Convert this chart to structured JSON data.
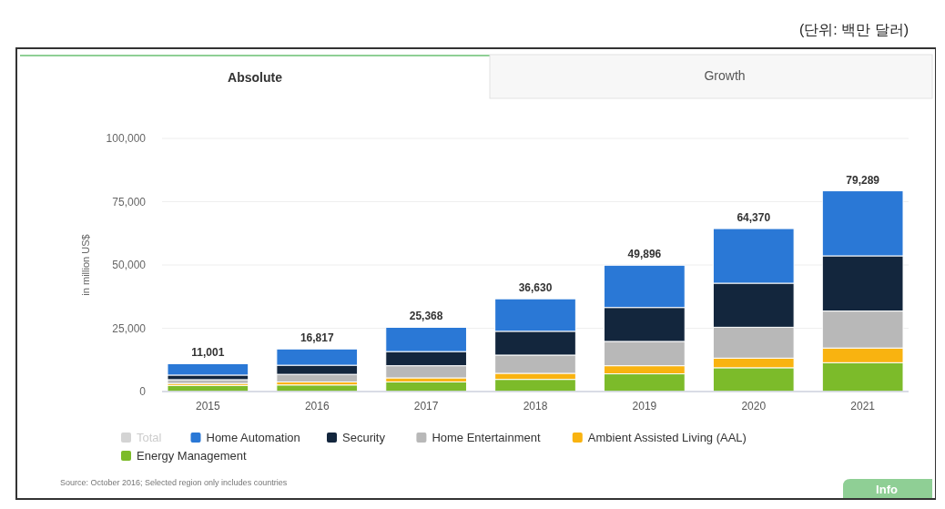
{
  "chart_data": {
    "type": "bar",
    "stacked": true,
    "ylabel": "in million US$",
    "categories": [
      "2015",
      "2016",
      "2017",
      "2018",
      "2019",
      "2020",
      "2021"
    ],
    "series": [
      {
        "name": "Energy Management",
        "color": "#7cbb2a",
        "values": [
          2400,
          2600,
          3800,
          4800,
          7000,
          9400,
          11400
        ]
      },
      {
        "name": "Ambient Assisted Living (AAL)",
        "color": "#f9b310",
        "values": [
          800,
          1200,
          1600,
          2400,
          3200,
          3800,
          5800
        ]
      },
      {
        "name": "Home Entertainment",
        "color": "#b8b8b8",
        "values": [
          1500,
          3000,
          4800,
          7200,
          9600,
          12200,
          14600
        ]
      },
      {
        "name": "Security",
        "color": "#13263d",
        "values": [
          1800,
          3600,
          5600,
          9400,
          13400,
          17400,
          21800
        ]
      },
      {
        "name": "Home Automation",
        "color": "#2a78d6",
        "values": [
          4501,
          6417,
          9568,
          12830,
          16696,
          21570,
          25689
        ]
      },
      {
        "name": "Total",
        "color": "#d4d4d4",
        "values": [
          null,
          null,
          null,
          null,
          null,
          null,
          null
        ]
      }
    ],
    "totals": [
      "11,001",
      "16,817",
      "25,368",
      "36,630",
      "49,896",
      "64,370",
      "79,289"
    ],
    "ylim": [
      0,
      100000
    ],
    "yticks": [
      {
        "value": 0,
        "label": "0"
      },
      {
        "value": 25000,
        "label": "25,000"
      },
      {
        "value": 50000,
        "label": "50,000"
      },
      {
        "value": 75000,
        "label": "75,000"
      },
      {
        "value": 100000,
        "label": "100,000"
      }
    ],
    "grid": "y",
    "legend": "bottom",
    "annotations": [
      "(단위: 백만 달러)",
      "Absolute",
      "Growth",
      "Source: October 2016; Selected region only includes countries",
      "Info"
    ]
  }
}
